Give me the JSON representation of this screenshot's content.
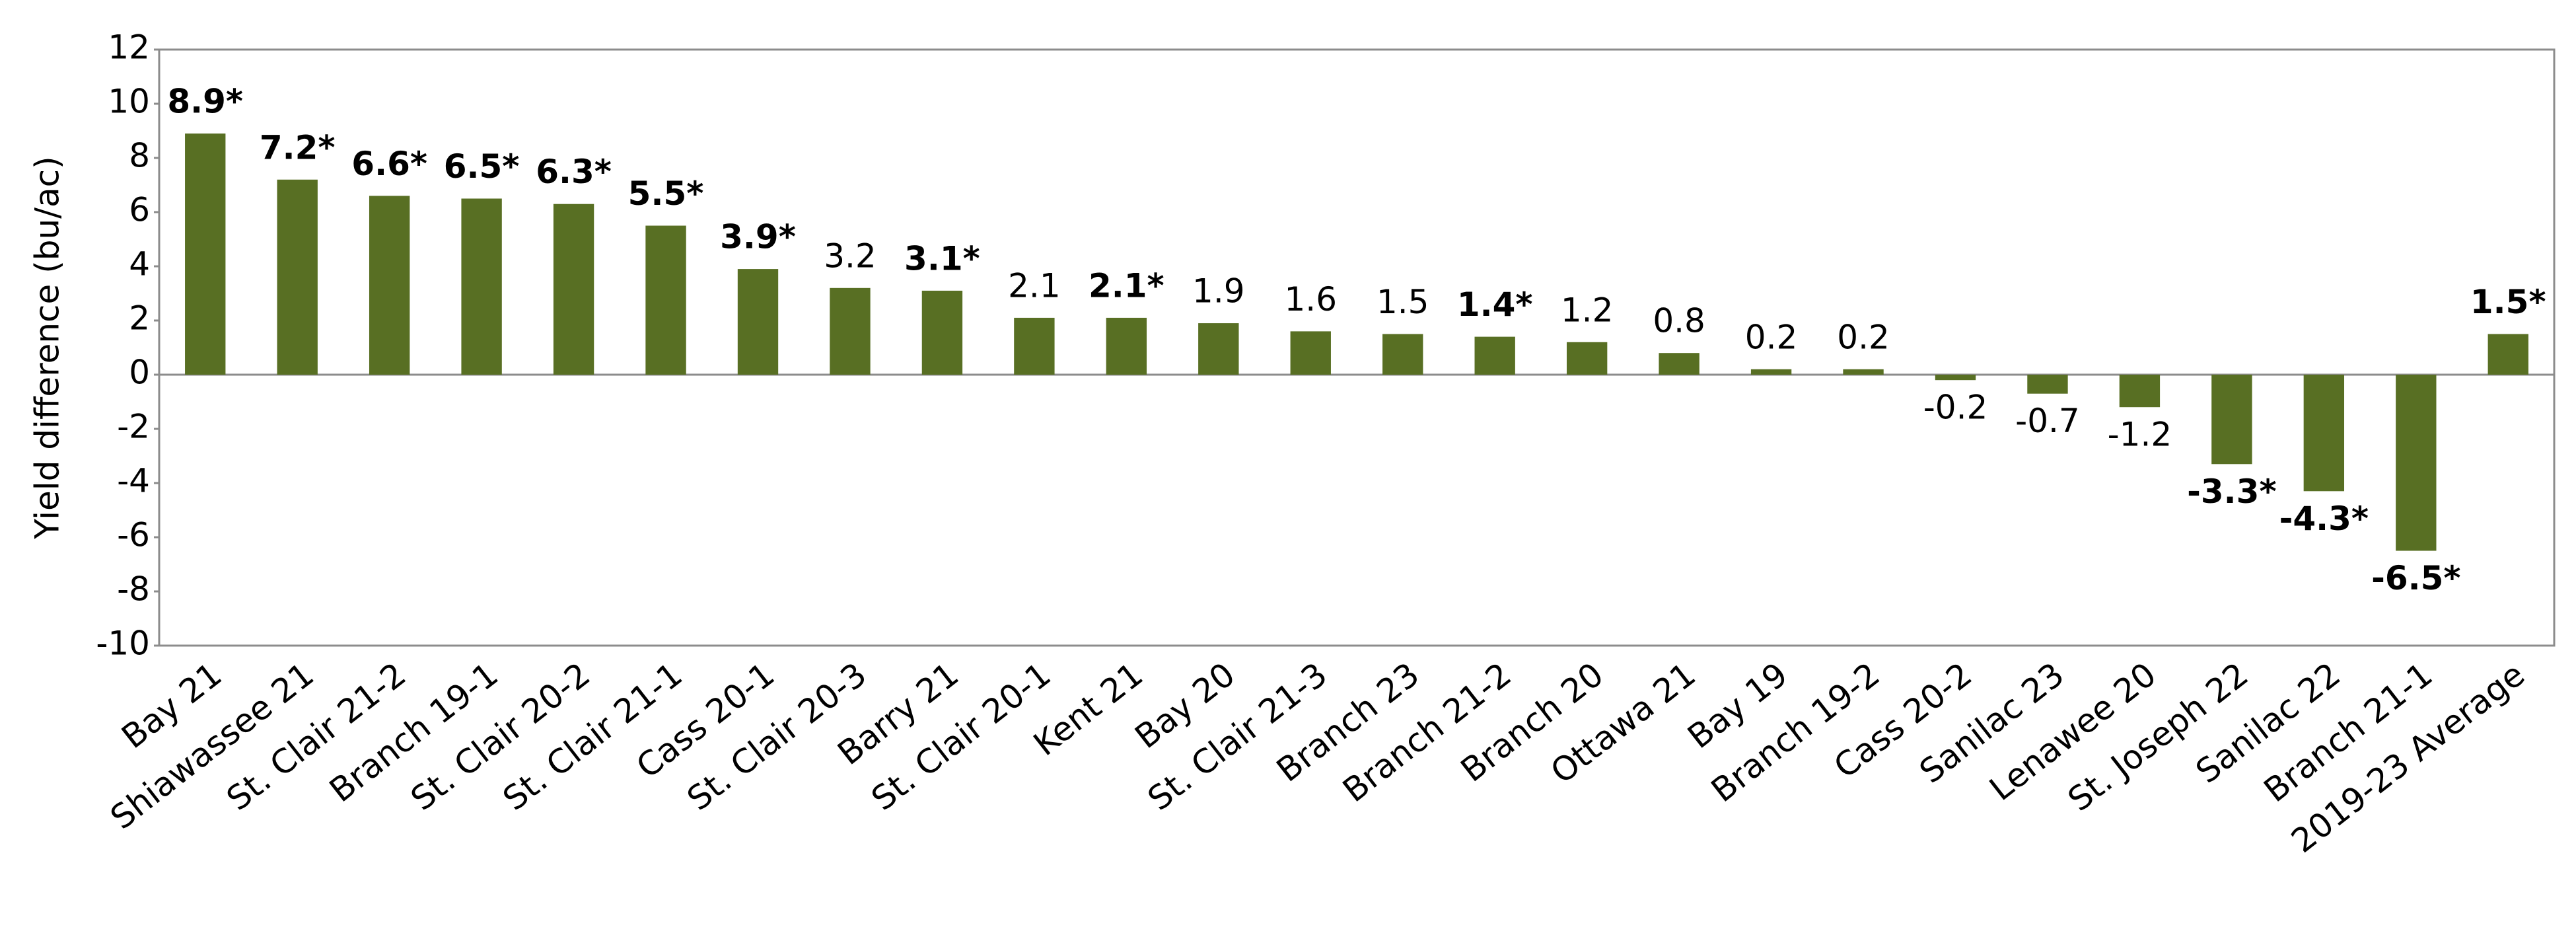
{
  "chart_data": {
    "type": "bar",
    "y_label": "Yield difference (bu/ac)",
    "categories": [
      "Bay 21",
      "Shiawassee 21",
      "St. Clair 21-2",
      "Branch 19-1",
      "St. Clair 20-2",
      "St. Clair 21-1",
      "Cass 20-1",
      "St. Clair 20-3",
      "Barry 21",
      "St. Clair 20-1",
      "Kent 21",
      "Bay 20",
      "St. Clair 21-3",
      "Branch 23",
      "Branch 21-2",
      "Branch 20",
      "Ottawa 21",
      "Bay 19",
      "Branch 19-2",
      "Cass 20-2",
      "Sanilac 23",
      "Lenawee 20",
      "St. Joseph 22",
      "Sanilac 22",
      "Branch 21-1",
      "2019-23 Average"
    ],
    "values": [
      8.9,
      7.2,
      6.6,
      6.5,
      6.3,
      5.5,
      3.9,
      3.2,
      3.1,
      2.1,
      2.1,
      1.9,
      1.6,
      1.5,
      1.4,
      1.2,
      0.8,
      0.2,
      0.2,
      -0.2,
      -0.7,
      -1.2,
      -3.3,
      -4.3,
      -6.5,
      1.5
    ],
    "value_labels": [
      "8.9*",
      "7.2*",
      "6.6*",
      "6.5*",
      "6.3*",
      "5.5*",
      "3.9*",
      "3.2",
      "3.1*",
      "2.1",
      "2.1*",
      "1.9",
      "1.6",
      "1.5",
      "1.4*",
      "1.2",
      "0.8",
      "0.2",
      "0.2",
      "-0.2",
      "-0.7",
      "-1.2",
      "-3.3*",
      "-4.3*",
      "-6.5*",
      "1.5*"
    ],
    "color": "#586f23",
    "ylim": [
      -10,
      12
    ],
    "yticks": [
      -10,
      -8,
      -6,
      -4,
      -2,
      0,
      2,
      4,
      6,
      8,
      10,
      12
    ]
  }
}
